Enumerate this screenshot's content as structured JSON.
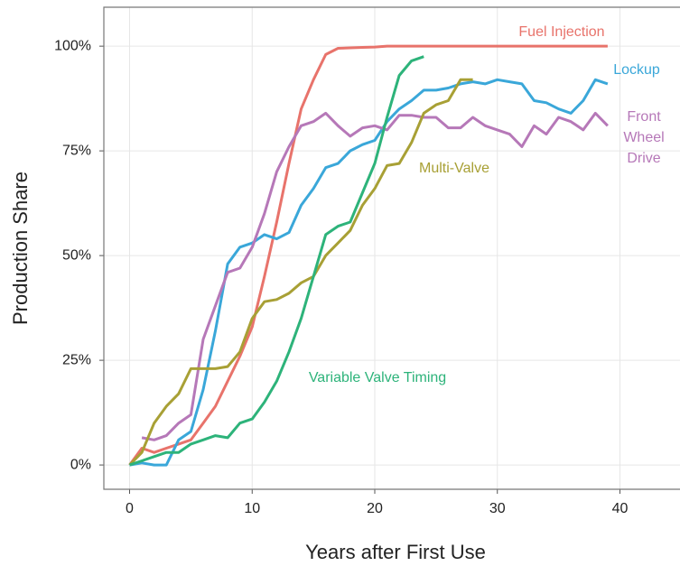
{
  "chart_data": {
    "type": "line",
    "x": [
      0,
      1,
      2,
      3,
      4,
      5,
      6,
      7,
      8,
      9,
      10,
      11,
      12,
      13,
      14,
      15,
      16,
      17,
      18,
      19,
      20,
      21,
      22,
      23,
      24,
      25,
      26,
      27,
      28,
      29,
      30,
      31,
      32,
      33,
      34,
      35,
      36,
      37,
      38,
      39
    ],
    "series": [
      {
        "name": "Fuel Injection",
        "color": "#e8736b",
        "values": [
          0,
          4,
          3,
          4,
          5,
          6,
          10,
          14,
          20,
          26,
          33,
          45,
          58,
          72,
          85,
          92,
          98,
          99.5,
          99.6,
          99.7,
          99.8,
          100,
          100,
          100,
          100,
          100,
          100,
          100,
          100,
          100,
          100,
          100,
          100,
          100,
          100,
          100,
          100,
          100,
          100,
          100
        ]
      },
      {
        "name": "Lockup",
        "color": "#3aa7d9",
        "values": [
          0,
          0.5,
          0,
          0,
          6,
          8,
          18,
          32,
          48,
          52,
          53,
          55,
          54,
          55.5,
          62,
          66,
          71,
          72,
          75,
          76.5,
          77.5,
          82,
          85,
          87,
          89.5,
          89.5,
          90,
          91,
          91.5,
          91,
          92,
          91.5,
          91,
          87,
          86.5,
          85,
          84,
          87,
          92,
          91
        ]
      },
      {
        "name": "Front Wheel Drive",
        "color": "#b678b8",
        "values": [
          null,
          6.5,
          6,
          7,
          10,
          12,
          30,
          38,
          46,
          47,
          52,
          60,
          70,
          76,
          81,
          82,
          84,
          81,
          78.5,
          80.5,
          81,
          80,
          83.5,
          83.5,
          83,
          83,
          80.5,
          80.5,
          83,
          81,
          80,
          79,
          76,
          81,
          79,
          83,
          82,
          80,
          84,
          81
        ]
      },
      {
        "name": "Multi-Valve",
        "color": "#a8a035",
        "values": [
          0,
          3,
          10,
          14,
          17,
          23,
          23,
          23,
          23.5,
          27,
          35,
          39,
          39.5,
          41,
          43.5,
          45,
          50,
          53,
          56,
          62,
          66,
          71.5,
          72,
          77,
          84,
          86,
          87,
          92,
          92,
          null,
          null,
          null,
          null,
          null,
          null,
          null,
          null,
          null,
          null,
          null
        ]
      },
      {
        "name": "Variable Valve Timing",
        "color": "#2db37a",
        "values": [
          0,
          1,
          2,
          3,
          3,
          5,
          6,
          7,
          6.5,
          10,
          11,
          15,
          20,
          27,
          35,
          45,
          55,
          57,
          58,
          65,
          72,
          83,
          93,
          96.5,
          97.5,
          null,
          null,
          null,
          null,
          null,
          null,
          null,
          null,
          null,
          null,
          null,
          null,
          null,
          null,
          null
        ]
      }
    ],
    "x_label": "Years after First Use",
    "y_label": "Production Share",
    "xlim": [
      -2.1,
      44.9
    ],
    "xticks": [
      0,
      10,
      20,
      30,
      40
    ],
    "ylim": [
      -5.8,
      109.3
    ],
    "yticks": [
      {
        "value": 0,
        "label": "0%"
      },
      {
        "value": 25,
        "label": "25%"
      },
      {
        "value": 50,
        "label": "50%"
      },
      {
        "value": 75,
        "label": "75%"
      },
      {
        "value": 100,
        "label": "100%"
      }
    ],
    "grid": true
  }
}
